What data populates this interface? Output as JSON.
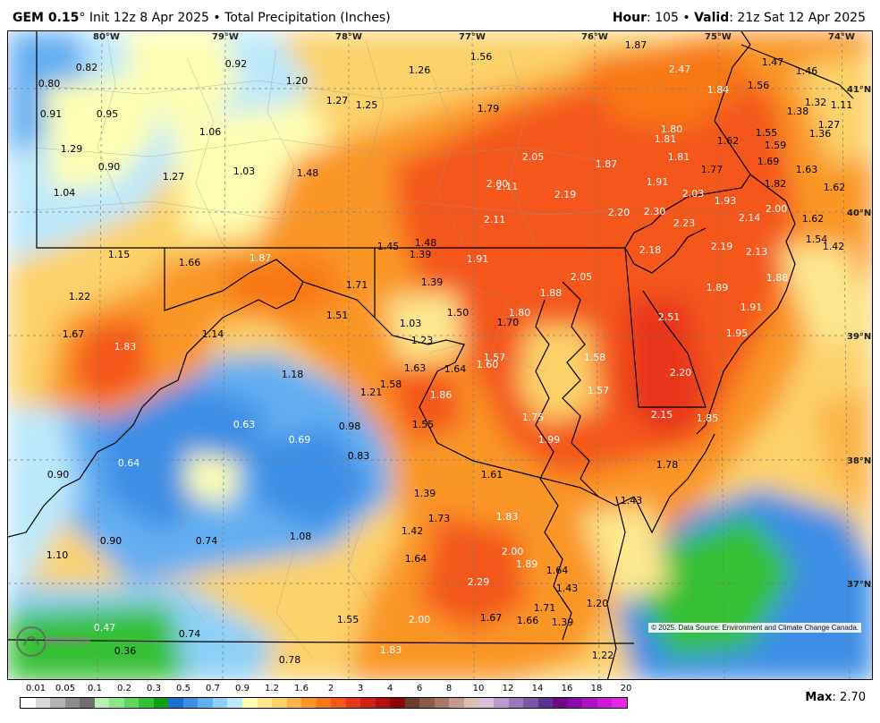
{
  "header": {
    "model": "GEM 0.15",
    "degree": "°",
    "init": "Init 12z 8 Apr 2025",
    "bullet": "•",
    "product": "Total Precipitation (Inches)",
    "hour_label": "Hour",
    "hour_value": ": 105",
    "valid_label": "Valid",
    "valid_value": ": 21z Sat 12 Apr 2025"
  },
  "map": {
    "longitude_labels": [
      "80°W",
      "79°W",
      "78°W",
      "77°W",
      "76°W",
      "75°W",
      "74°W"
    ],
    "latitude_labels": [
      "41°N",
      "40°N",
      "39°N",
      "38°N",
      "37°N"
    ],
    "values": [
      "0.82",
      "0.80",
      "0.91",
      "0.95",
      "1.29",
      "0.90",
      "1.04",
      "0.92",
      "1.06",
      "1.27",
      "1.03",
      "1.20",
      "1.27",
      "1.25",
      "1.48",
      "1.26",
      "1.56",
      "1.79",
      "1.87",
      "2.47",
      "1.84",
      "1.47",
      "1.46",
      "1.56",
      "1.32",
      "1.11",
      "1.38",
      "1.80",
      "1.81",
      "1.81",
      "1.62",
      "1.55",
      "1.59",
      "1.69",
      "1.63",
      "1.27",
      "1.36",
      "2.05",
      "1.87",
      "1.91",
      "1.77",
      "2.00",
      "2.11",
      "2.19",
      "2.03",
      "1.93",
      "1.82",
      "1.62",
      "2.11",
      "2.20",
      "2.30",
      "2.23",
      "2.14",
      "2.00",
      "1.62",
      "1.54",
      "1.42",
      "1.15",
      "1.66",
      "1.87",
      "1.45",
      "1.48",
      "1.39",
      "1.91",
      "2.18",
      "2.19",
      "2.13",
      "1.22",
      "1.71",
      "1.39",
      "1.88",
      "2.05",
      "1.89",
      "1.88",
      "1.51",
      "1.50",
      "1.80",
      "1.91",
      "1.67",
      "1.14",
      "1.03",
      "1.70",
      "2.51",
      "1.95",
      "1.83",
      "1.23",
      "1.57",
      "1.58",
      "1.63",
      "1.64",
      "1.60",
      "1.18",
      "1.21",
      "1.58",
      "1.86",
      "2.20",
      "1.57",
      "0.63",
      "0.98",
      "1.55",
      "1.75",
      "1.99",
      "2.15",
      "1.85",
      "0.69",
      "0.64",
      "0.83",
      "1.61",
      "1.78",
      "0.90",
      "1.39",
      "1.43",
      "1.73",
      "1.83",
      "0.90",
      "0.74",
      "1.08",
      "1.42",
      "1.10",
      "1.64",
      "2.00",
      "1.89",
      "1.64",
      "2.29",
      "1.43",
      "0.47",
      "0.74",
      "1.71",
      "1.20",
      "1.55",
      "2.00",
      "1.67",
      "1.66",
      "1.39",
      "0.36",
      "0.78",
      "1.83",
      "1.22"
    ],
    "copyright": "© 2025. Data Source: Environment and Climate Change Canada."
  },
  "legend": {
    "labels": [
      "0.01",
      "0.05",
      "0.1",
      "0.2",
      "0.3",
      "0.5",
      "0.7",
      "0.9",
      "1.2",
      "1.6",
      "2",
      "3",
      "4",
      "6",
      "8",
      "10",
      "12",
      "14",
      "16",
      "18",
      "20"
    ],
    "colors": [
      "#ffffff",
      "#d8d8d8",
      "#b4b4b4",
      "#8c8c8c",
      "#6e6e6e",
      "#b8f0b4",
      "#8ee48a",
      "#60d460",
      "#34c034",
      "#10a010",
      "#1e6fd0",
      "#3c8ee6",
      "#64aef2",
      "#8ed0f8",
      "#bce8fc",
      "#fefeb4",
      "#fde890",
      "#fcd26a",
      "#fcb448",
      "#fa9628",
      "#f87818",
      "#f4561a",
      "#e8361a",
      "#d01e18",
      "#b01010",
      "#8c0808",
      "#6e3c2c",
      "#8c5a4a",
      "#a87868",
      "#c49c8c",
      "#dcc0b4",
      "#d8c0dc",
      "#b89ccc",
      "#9878b8",
      "#7858a4",
      "#5a3490",
      "#6c0a88",
      "#8c0aa8",
      "#ac12c4",
      "#cc1ad8",
      "#e824e8"
    ],
    "max_label": "Max",
    "max_value": ": 2.70"
  }
}
